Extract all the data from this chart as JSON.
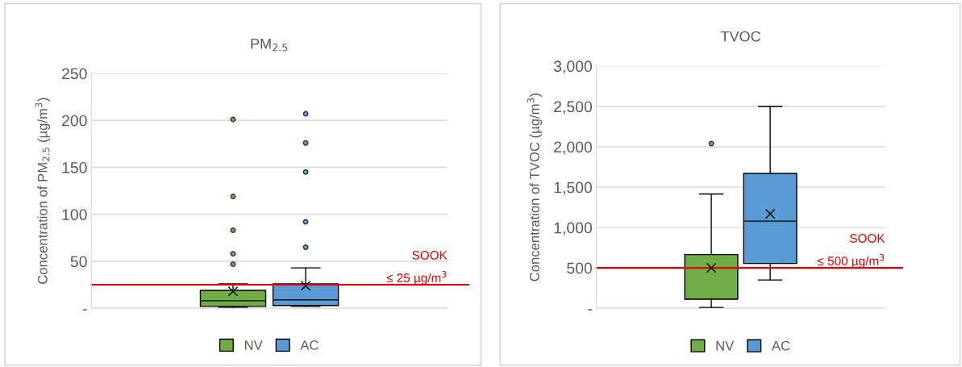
{
  "chart_data": [
    {
      "type": "box",
      "title": "PM$_{2.5}$",
      "ylabel": "Concentration of PM$_{2.5}$ (µg/m$^{3}$)",
      "categories": [
        null
      ],
      "ylim": [
        0,
        250
      ],
      "yticks": [
        {
          "value": 0,
          "label": "-"
        },
        50,
        100,
        150,
        200,
        250
      ],
      "grid": "y",
      "legend": "bottom",
      "series": [
        {
          "name": "NV",
          "color": "#70ad47",
          "boxes": [
            {
              "low": 1,
              "q1": 2,
              "median": 8,
              "q3": 19,
              "high": 26,
              "mean": 18,
              "outliers": [
                47,
                58,
                83,
                119,
                201
              ]
            }
          ]
        },
        {
          "name": "AC",
          "color": "#5b9bd5",
          "boxes": [
            {
              "low": 2,
              "q1": 3,
              "median": 9,
              "q3": 26,
              "high": 43,
              "mean": 24,
              "outliers": [
                65,
                92,
                145,
                176,
                207
              ]
            }
          ]
        }
      ],
      "ref_lines": [
        {
          "axis": "y",
          "value": 25,
          "label": "SOOK\n≤ 25 µg/m$^{3}$",
          "color": "#e00000"
        }
      ]
    },
    {
      "type": "box",
      "title": "TVOC",
      "ylabel": "Concentration of TVOC (µg/m$^{3}$)",
      "categories": [
        null
      ],
      "ylim": [
        0,
        3000
      ],
      "yticks": [
        {
          "value": 0,
          "label": "-"
        },
        {
          "value": 500,
          "label": "500"
        },
        {
          "value": 1000,
          "label": "1,000"
        },
        {
          "value": 1500,
          "label": "1,500"
        },
        {
          "value": 2000,
          "label": "2,000"
        },
        {
          "value": 2500,
          "label": "2,500"
        },
        {
          "value": 3000,
          "label": "3,000"
        }
      ],
      "grid": "y",
      "legend": "bottom",
      "series": [
        {
          "name": "NV",
          "color": "#70ad47",
          "boxes": [
            {
              "low": 10,
              "q1": 115,
              "median": 115,
              "q3": 665,
              "high": 1415,
              "mean": 500,
              "outliers": [
                2040
              ]
            }
          ]
        },
        {
          "name": "AC",
          "color": "#5b9bd5",
          "boxes": [
            {
              "low": 350,
              "q1": 555,
              "median": 1080,
              "q3": 1670,
              "high": 2500,
              "mean": 1170
            }
          ]
        }
      ],
      "ref_lines": [
        {
          "axis": "y",
          "value": 500,
          "label": "SOOK\n≤ 500 µg/m$^{3}$",
          "color": "#e00000"
        }
      ]
    }
  ]
}
